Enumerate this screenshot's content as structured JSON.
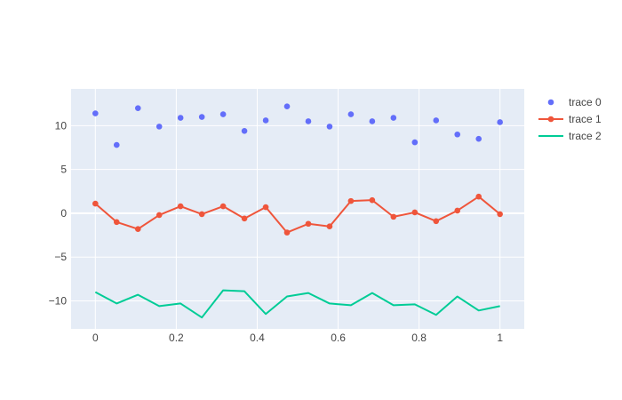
{
  "chart_data": {
    "type": "line",
    "title": "",
    "xlabel": "",
    "ylabel": "",
    "xlim": [
      -0.06,
      1.06
    ],
    "ylim": [
      -13.2,
      14.2
    ],
    "x_ticks": [
      0,
      0.2,
      0.4,
      0.6,
      0.8,
      1
    ],
    "x_tick_labels": [
      "0",
      "0.2",
      "0.4",
      "0.6",
      "0.8",
      "1"
    ],
    "y_ticks": [
      10,
      5,
      0,
      -5,
      -10
    ],
    "y_tick_labels": [
      "10",
      "5",
      "0",
      "−5",
      "−10"
    ],
    "grid": true,
    "legend_position": "top-right",
    "plot_background": "#e5ecf6",
    "x": [
      0,
      0.0526,
      0.1053,
      0.1579,
      0.2105,
      0.2632,
      0.3158,
      0.3684,
      0.4211,
      0.4737,
      0.5263,
      0.5789,
      0.6316,
      0.6842,
      0.7368,
      0.7895,
      0.8421,
      0.8947,
      0.9474,
      1
    ],
    "series": [
      {
        "name": "trace 0",
        "mode": "markers",
        "color": "#636efa",
        "values": [
          11.4,
          7.8,
          12.0,
          9.9,
          10.9,
          11.0,
          11.3,
          9.4,
          10.6,
          12.2,
          10.5,
          9.9,
          11.3,
          10.5,
          10.9,
          8.1,
          10.6,
          9.0,
          8.5,
          10.4
        ]
      },
      {
        "name": "trace 1",
        "mode": "lines+markers",
        "color": "#ef553b",
        "values": [
          1.1,
          -1.0,
          -1.8,
          -0.2,
          0.8,
          -0.1,
          0.8,
          -0.6,
          0.7,
          -2.2,
          -1.2,
          -1.5,
          1.4,
          1.5,
          -0.4,
          0.1,
          -0.9,
          0.3,
          1.9,
          -0.1
        ]
      },
      {
        "name": "trace 2",
        "mode": "lines",
        "color": "#00cc96",
        "values": [
          -9.0,
          -10.3,
          -9.3,
          -10.6,
          -10.3,
          -11.9,
          -8.8,
          -8.9,
          -11.5,
          -9.5,
          -9.1,
          -10.3,
          -10.5,
          -9.1,
          -10.5,
          -10.4,
          -11.6,
          -9.5,
          -11.1,
          -10.6
        ]
      }
    ]
  }
}
